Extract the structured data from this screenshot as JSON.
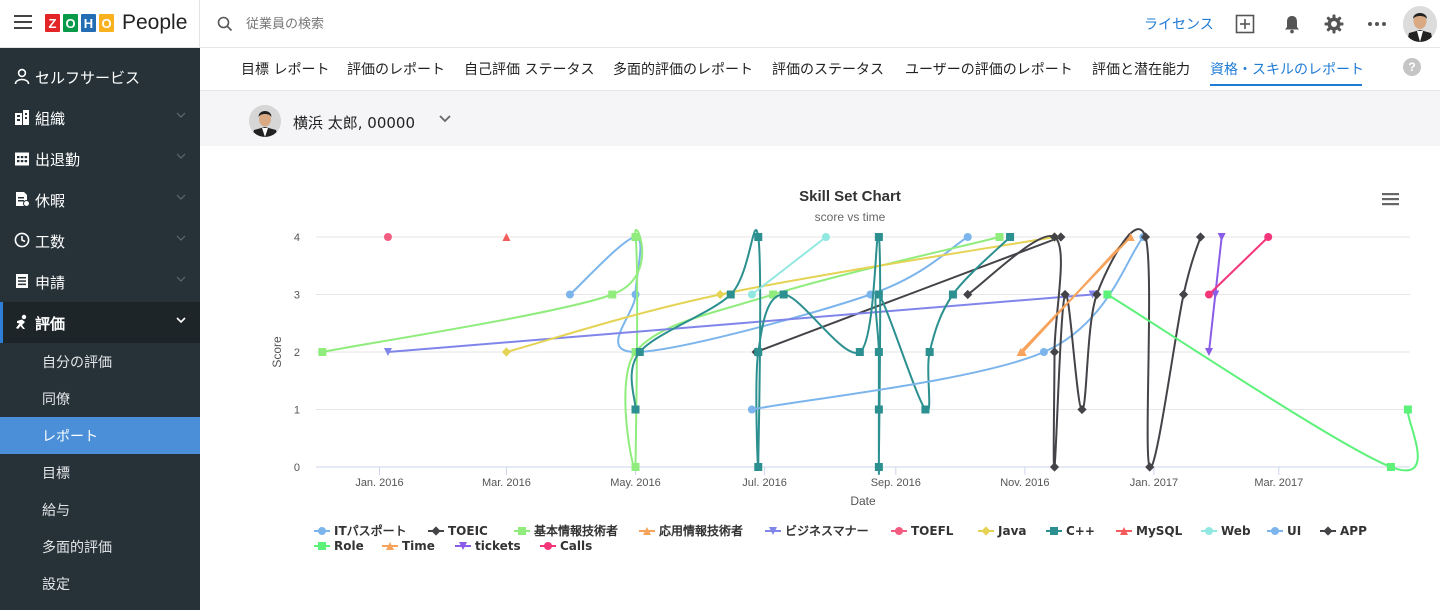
{
  "app": {
    "logo_letters": [
      "Z",
      "O",
      "H",
      "O"
    ],
    "logo_colors": [
      "#e42527",
      "#089949",
      "#226db4",
      "#f9b21d"
    ],
    "name": "People"
  },
  "search": {
    "placeholder": "従業員の検索"
  },
  "topbar": {
    "license_label": "ライセンス",
    "icons": [
      "add-icon",
      "bell-icon",
      "gear-icon",
      "more-icon"
    ]
  },
  "sidebar": {
    "items": [
      {
        "label": "セルフサービス",
        "icon": "person-icon",
        "expandable": false,
        "active": false
      },
      {
        "label": "組織",
        "icon": "building-icon",
        "expandable": true,
        "active": false
      },
      {
        "label": "出退勤",
        "icon": "calendar-icon",
        "expandable": true,
        "active": false
      },
      {
        "label": "休暇",
        "icon": "leave-icon",
        "expandable": true,
        "active": false
      },
      {
        "label": "工数",
        "icon": "clock-icon",
        "expandable": true,
        "active": false
      },
      {
        "label": "申請",
        "icon": "form-icon",
        "expandable": true,
        "active": false
      },
      {
        "label": "評価",
        "icon": "performance-icon",
        "expandable": true,
        "active": true
      }
    ],
    "subitems": [
      {
        "label": "自分の評価",
        "active": false
      },
      {
        "label": "同僚",
        "active": false
      },
      {
        "label": "レポート",
        "active": true
      },
      {
        "label": "目標",
        "active": false
      },
      {
        "label": "給与",
        "active": false
      },
      {
        "label": "多面的評価",
        "active": false
      },
      {
        "label": "設定",
        "active": false
      }
    ]
  },
  "tabs": [
    {
      "label": "目標 レポート",
      "active": false
    },
    {
      "label": "評価のレポート",
      "active": false
    },
    {
      "label": "自己評価 ステータス",
      "active": false
    },
    {
      "label": "多面的評価のレポート",
      "active": false
    },
    {
      "label": "評価のステータス",
      "active": false
    },
    {
      "label": "ユーザーの評価のレポート",
      "active": false
    },
    {
      "label": "評価と潜在能力",
      "active": false
    },
    {
      "label": "資格・スキルのレポート",
      "active": true
    }
  ],
  "help_label": "?",
  "employee": {
    "name": "横浜 太郎, 00000"
  },
  "chart_data": {
    "type": "line",
    "title": "Skill Set Chart",
    "subtitle": "score vs time",
    "xlabel": "Date",
    "ylabel": "Score",
    "ylim": [
      0,
      4
    ],
    "yticks": [
      "0",
      "1",
      "2",
      "3",
      "4"
    ],
    "xlim": [
      "2015-12-02",
      "2017-05-02"
    ],
    "xticks": [
      {
        "date": "2016-01-01",
        "label": "Jan. 2016"
      },
      {
        "date": "2016-03-01",
        "label": "Mar. 2016"
      },
      {
        "date": "2016-05-01",
        "label": "May. 2016"
      },
      {
        "date": "2016-07-01",
        "label": "Jul. 2016"
      },
      {
        "date": "2016-09-01",
        "label": "Sep. 2016"
      },
      {
        "date": "2016-11-01",
        "label": "Nov. 2016"
      },
      {
        "date": "2017-01-01",
        "label": "Jan. 2017"
      },
      {
        "date": "2017-03-01",
        "label": "Mar. 2017"
      }
    ],
    "grid": true,
    "legend_position": "bottom",
    "menu_icon": "hamburger-menu-icon",
    "series": [
      {
        "name": "ITパスポート",
        "color": "#7cb5ec",
        "marker": "circle",
        "points": [
          [
            "2016-03-31",
            3
          ],
          [
            "2016-05-01",
            4
          ],
          [
            "2016-05-01",
            3
          ],
          [
            "2016-05-01",
            2
          ],
          [
            "2016-08-20",
            3
          ],
          [
            "2016-10-05",
            4
          ]
        ]
      },
      {
        "name": "TOEIC",
        "color": "#434348",
        "marker": "diamond",
        "points": [
          [
            "2016-06-27",
            2
          ],
          [
            "2016-11-18",
            4
          ]
        ]
      },
      {
        "name": "基本情報技術者",
        "color": "#90ed7d",
        "marker": "square",
        "points": [
          [
            "2015-12-05",
            2
          ],
          [
            "2016-04-20",
            3
          ],
          [
            "2016-05-01",
            4
          ],
          [
            "2016-05-01",
            0
          ],
          [
            "2016-05-01",
            2
          ],
          [
            "2016-07-05",
            3
          ],
          [
            "2016-10-20",
            4
          ]
        ]
      },
      {
        "name": "応用情報技術者",
        "color": "#f7a35c",
        "marker": "triangle",
        "points": [
          [
            "2016-10-31",
            2
          ],
          [
            "2016-12-20",
            4
          ]
        ]
      },
      {
        "name": "ビジネスマナー",
        "color": "#8085e9",
        "marker": "triangle-down",
        "points": [
          [
            "2016-01-05",
            2
          ],
          [
            "2016-12-03",
            3
          ]
        ]
      },
      {
        "name": "TOEFL",
        "color": "#f15c80",
        "marker": "circle",
        "points": [
          [
            "2016-01-05",
            4
          ]
        ]
      },
      {
        "name": "Java",
        "color": "#e4d354",
        "marker": "diamond",
        "points": [
          [
            "2016-03-01",
            2
          ],
          [
            "2016-06-10",
            3
          ],
          [
            "2016-11-15",
            4
          ]
        ]
      },
      {
        "name": "C++",
        "color": "#2b908f",
        "marker": "square",
        "points": [
          [
            "2016-05-01",
            1
          ],
          [
            "2016-05-03",
            2
          ],
          [
            "2016-06-15",
            3
          ],
          [
            "2016-06-28",
            4
          ],
          [
            "2016-06-28",
            0
          ],
          [
            "2016-06-28",
            2
          ],
          [
            "2016-07-10",
            3
          ],
          [
            "2016-08-15",
            2
          ],
          [
            "2016-08-24",
            4
          ],
          [
            "2016-08-24",
            0
          ],
          [
            "2016-08-24",
            1
          ],
          [
            "2016-08-24",
            2
          ],
          [
            "2016-08-24",
            3
          ],
          [
            "2016-09-15",
            1
          ],
          [
            "2016-09-17",
            2
          ],
          [
            "2016-09-28",
            3
          ],
          [
            "2016-10-25",
            4
          ]
        ]
      },
      {
        "name": "MySQL",
        "color": "#f45b5b",
        "marker": "triangle",
        "points": [
          [
            "2016-03-01",
            4
          ]
        ]
      },
      {
        "name": "Web",
        "color": "#91e8e1",
        "marker": "circle",
        "points": [
          [
            "2016-06-25",
            3
          ],
          [
            "2016-07-30",
            4
          ]
        ]
      },
      {
        "name": "UI",
        "color": "#7cb5ec",
        "marker": "circle",
        "points": [
          [
            "2016-06-25",
            1
          ],
          [
            "2016-11-10",
            2
          ],
          [
            "2016-12-27",
            4
          ]
        ]
      },
      {
        "name": "APP",
        "color": "#434348",
        "marker": "diamond",
        "points": [
          [
            "2016-10-05",
            3
          ],
          [
            "2016-11-15",
            4
          ],
          [
            "2016-11-15",
            2
          ],
          [
            "2016-11-15",
            0
          ],
          [
            "2016-11-20",
            3
          ],
          [
            "2016-11-28",
            1
          ],
          [
            "2016-12-05",
            3
          ],
          [
            "2016-12-28",
            4
          ],
          [
            "2016-12-30",
            0
          ],
          [
            "2017-01-15",
            3
          ],
          [
            "2017-01-23",
            4
          ]
        ]
      },
      {
        "name": "Role",
        "color": "#5cf27a",
        "marker": "square",
        "points": [
          [
            "2016-12-10",
            3
          ],
          [
            "2017-04-23",
            0
          ],
          [
            "2017-05-01",
            1
          ]
        ]
      },
      {
        "name": "Time",
        "color": "#f7a35c",
        "marker": "triangle",
        "points": [
          [
            "2016-10-30",
            2
          ],
          [
            "2016-12-21",
            4
          ]
        ]
      },
      {
        "name": "tickets",
        "color": "#8a5ce8",
        "marker": "triangle-down",
        "points": [
          [
            "2017-01-27",
            2
          ],
          [
            "2017-01-30",
            3
          ],
          [
            "2017-02-02",
            4
          ]
        ]
      },
      {
        "name": "Calls",
        "color": "#f5357a",
        "marker": "circle",
        "points": [
          [
            "2017-01-27",
            3
          ],
          [
            "2017-02-24",
            4
          ]
        ]
      }
    ]
  }
}
